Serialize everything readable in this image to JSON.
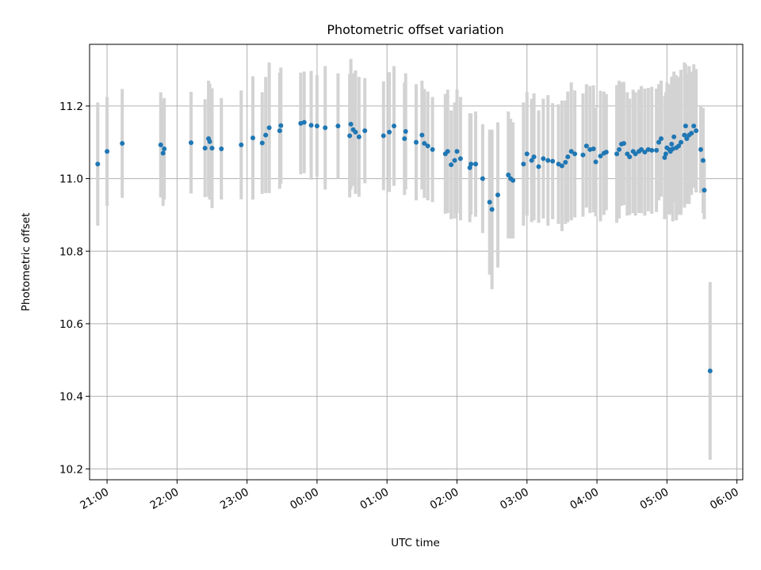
{
  "chart_data": {
    "type": "scatter",
    "title": "Photometric offset variation",
    "xlabel": "UTC time",
    "ylabel": "Photometric offset",
    "xlim": [
      "20:45",
      "06:05"
    ],
    "ylim": [
      10.17,
      11.37
    ],
    "xticks": [
      "21:00",
      "22:00",
      "23:00",
      "00:00",
      "01:00",
      "02:00",
      "03:00",
      "04:00",
      "05:00",
      "06:00"
    ],
    "yticks": [
      "10.2",
      "10.4",
      "10.6",
      "10.8",
      "11.0",
      "11.2"
    ],
    "grid": true,
    "colors": {
      "points": "#1f77b4",
      "error_bars": "#d3d3d3",
      "grid": "#b0b0b0"
    },
    "series": [
      {
        "points": [
          {
            "t": "20:52",
            "y": 11.04,
            "err": 0.17
          },
          {
            "t": "21:00",
            "y": 11.075,
            "err": 0.15
          },
          {
            "t": "21:13",
            "y": 11.097,
            "err": 0.15
          },
          {
            "t": "21:46",
            "y": 11.093,
            "err": 0.145
          },
          {
            "t": "21:48",
            "y": 11.07,
            "err": 0.145
          },
          {
            "t": "21:49",
            "y": 11.082,
            "err": 0.14
          },
          {
            "t": "22:12",
            "y": 11.099,
            "err": 0.14
          },
          {
            "t": "22:24",
            "y": 11.084,
            "err": 0.135
          },
          {
            "t": "22:27",
            "y": 11.11,
            "err": 0.16
          },
          {
            "t": "22:28",
            "y": 11.102,
            "err": 0.16
          },
          {
            "t": "22:30",
            "y": 11.084,
            "err": 0.165
          },
          {
            "t": "22:38",
            "y": 11.082,
            "err": 0.14
          },
          {
            "t": "22:55",
            "y": 11.093,
            "err": 0.15
          },
          {
            "t": "23:05",
            "y": 11.112,
            "err": 0.17
          },
          {
            "t": "23:13",
            "y": 11.098,
            "err": 0.14
          },
          {
            "t": "23:16",
            "y": 11.12,
            "err": 0.16
          },
          {
            "t": "23:19",
            "y": 11.14,
            "err": 0.18
          },
          {
            "t": "23:28",
            "y": 11.132,
            "err": 0.16
          },
          {
            "t": "23:29",
            "y": 11.146,
            "err": 0.16
          },
          {
            "t": "23:46",
            "y": 11.152,
            "err": 0.14
          },
          {
            "t": "23:49",
            "y": 11.155,
            "err": 0.14
          },
          {
            "t": "23:55",
            "y": 11.147,
            "err": 0.15
          },
          {
            "t": "00:00",
            "y": 11.145,
            "err": 0.14
          },
          {
            "t": "00:07",
            "y": 11.14,
            "err": 0.17
          },
          {
            "t": "00:18",
            "y": 11.145,
            "err": 0.145
          },
          {
            "t": "00:28",
            "y": 11.118,
            "err": 0.17
          },
          {
            "t": "00:29",
            "y": 11.15,
            "err": 0.18
          },
          {
            "t": "00:31",
            "y": 11.135,
            "err": 0.155
          },
          {
            "t": "00:33",
            "y": 11.128,
            "err": 0.17
          },
          {
            "t": "00:36",
            "y": 11.115,
            "err": 0.165
          },
          {
            "t": "00:41",
            "y": 11.132,
            "err": 0.145
          },
          {
            "t": "00:57",
            "y": 11.118,
            "err": 0.15
          },
          {
            "t": "01:02",
            "y": 11.128,
            "err": 0.165
          },
          {
            "t": "01:06",
            "y": 11.145,
            "err": 0.165
          },
          {
            "t": "01:15",
            "y": 11.11,
            "err": 0.155
          },
          {
            "t": "01:16",
            "y": 11.13,
            "err": 0.16
          },
          {
            "t": "01:25",
            "y": 11.1,
            "err": 0.16
          },
          {
            "t": "01:30",
            "y": 11.12,
            "err": 0.15
          },
          {
            "t": "01:32",
            "y": 11.097,
            "err": 0.15
          },
          {
            "t": "01:35",
            "y": 11.09,
            "err": 0.15
          },
          {
            "t": "01:39",
            "y": 11.08,
            "err": 0.145
          },
          {
            "t": "01:50",
            "y": 11.068,
            "err": 0.165
          },
          {
            "t": "01:52",
            "y": 11.075,
            "err": 0.17
          },
          {
            "t": "01:55",
            "y": 11.038,
            "err": 0.15
          },
          {
            "t": "01:58",
            "y": 11.05,
            "err": 0.16
          },
          {
            "t": "02:00",
            "y": 11.075,
            "err": 0.17
          },
          {
            "t": "02:03",
            "y": 11.055,
            "err": 0.17
          },
          {
            "t": "02:11",
            "y": 11.03,
            "err": 0.15
          },
          {
            "t": "02:12",
            "y": 11.04,
            "err": 0.14
          },
          {
            "t": "02:16",
            "y": 11.04,
            "err": 0.145
          },
          {
            "t": "02:22",
            "y": 11.0,
            "err": 0.15
          },
          {
            "t": "02:28",
            "y": 10.935,
            "err": 0.2
          },
          {
            "t": "02:30",
            "y": 10.915,
            "err": 0.22
          },
          {
            "t": "02:35",
            "y": 10.955,
            "err": 0.2
          },
          {
            "t": "02:44",
            "y": 11.01,
            "err": 0.175
          },
          {
            "t": "02:46",
            "y": 11.0,
            "err": 0.165
          },
          {
            "t": "02:48",
            "y": 10.995,
            "err": 0.16
          },
          {
            "t": "02:57",
            "y": 11.04,
            "err": 0.17
          },
          {
            "t": "03:00",
            "y": 11.068,
            "err": 0.17
          },
          {
            "t": "03:04",
            "y": 11.05,
            "err": 0.17
          },
          {
            "t": "03:06",
            "y": 11.06,
            "err": 0.175
          },
          {
            "t": "03:10",
            "y": 11.033,
            "err": 0.155
          },
          {
            "t": "03:14",
            "y": 11.055,
            "err": 0.165
          },
          {
            "t": "03:18",
            "y": 11.05,
            "err": 0.18
          },
          {
            "t": "03:22",
            "y": 11.048,
            "err": 0.16
          },
          {
            "t": "03:27",
            "y": 11.04,
            "err": 0.165
          },
          {
            "t": "03:30",
            "y": 11.035,
            "err": 0.18
          },
          {
            "t": "03:33",
            "y": 11.045,
            "err": 0.17
          },
          {
            "t": "03:35",
            "y": 11.06,
            "err": 0.18
          },
          {
            "t": "03:38",
            "y": 11.075,
            "err": 0.19
          },
          {
            "t": "03:41",
            "y": 11.068,
            "err": 0.175
          },
          {
            "t": "03:48",
            "y": 11.065,
            "err": 0.17
          },
          {
            "t": "03:51",
            "y": 11.09,
            "err": 0.17
          },
          {
            "t": "03:54",
            "y": 11.08,
            "err": 0.175
          },
          {
            "t": "03:57",
            "y": 11.082,
            "err": 0.175
          },
          {
            "t": "03:59",
            "y": 11.046,
            "err": 0.15
          },
          {
            "t": "04:03",
            "y": 11.062,
            "err": 0.18
          },
          {
            "t": "04:06",
            "y": 11.07,
            "err": 0.17
          },
          {
            "t": "04:08",
            "y": 11.073,
            "err": 0.16
          },
          {
            "t": "04:17",
            "y": 11.068,
            "err": 0.19
          },
          {
            "t": "04:19",
            "y": 11.08,
            "err": 0.19
          },
          {
            "t": "04:21",
            "y": 11.095,
            "err": 0.17
          },
          {
            "t": "04:23",
            "y": 11.097,
            "err": 0.17
          },
          {
            "t": "04:26",
            "y": 11.068,
            "err": 0.17
          },
          {
            "t": "04:28",
            "y": 11.06,
            "err": 0.16
          },
          {
            "t": "04:31",
            "y": 11.075,
            "err": 0.17
          },
          {
            "t": "04:33",
            "y": 11.068,
            "err": 0.17
          },
          {
            "t": "04:36",
            "y": 11.075,
            "err": 0.17
          },
          {
            "t": "04:38",
            "y": 11.08,
            "err": 0.175
          },
          {
            "t": "04:41",
            "y": 11.073,
            "err": 0.175
          },
          {
            "t": "04:44",
            "y": 11.08,
            "err": 0.17
          },
          {
            "t": "04:47",
            "y": 11.078,
            "err": 0.175
          },
          {
            "t": "04:51",
            "y": 11.078,
            "err": 0.17
          },
          {
            "t": "04:53",
            "y": 11.1,
            "err": 0.16
          },
          {
            "t": "04:55",
            "y": 11.11,
            "err": 0.16
          },
          {
            "t": "04:58",
            "y": 11.058,
            "err": 0.17
          },
          {
            "t": "04:59",
            "y": 11.068,
            "err": 0.17
          },
          {
            "t": "05:00",
            "y": 11.085,
            "err": 0.18
          },
          {
            "t": "05:02",
            "y": 11.08,
            "err": 0.18
          },
          {
            "t": "05:03",
            "y": 11.075,
            "err": 0.17
          },
          {
            "t": "05:04",
            "y": 11.095,
            "err": 0.185
          },
          {
            "t": "05:05",
            "y": 11.082,
            "err": 0.2
          },
          {
            "t": "05:06",
            "y": 11.115,
            "err": 0.18
          },
          {
            "t": "05:08",
            "y": 11.085,
            "err": 0.2
          },
          {
            "t": "05:10",
            "y": 11.09,
            "err": 0.19
          },
          {
            "t": "05:12",
            "y": 11.1,
            "err": 0.2
          },
          {
            "t": "05:15",
            "y": 11.12,
            "err": 0.2
          },
          {
            "t": "05:16",
            "y": 11.145,
            "err": 0.17
          },
          {
            "t": "05:17",
            "y": 11.11,
            "err": 0.18
          },
          {
            "t": "05:19",
            "y": 11.12,
            "err": 0.19
          },
          {
            "t": "05:21",
            "y": 11.125,
            "err": 0.17
          },
          {
            "t": "05:23",
            "y": 11.145,
            "err": 0.17
          },
          {
            "t": "05:25",
            "y": 11.132,
            "err": 0.17
          },
          {
            "t": "05:29",
            "y": 11.08,
            "err": 0.12
          },
          {
            "t": "05:31",
            "y": 11.05,
            "err": 0.145
          },
          {
            "t": "05:32",
            "y": 10.968,
            "err": 0.08
          },
          {
            "t": "05:37",
            "y": 10.47,
            "err": 0.245
          }
        ]
      }
    ]
  }
}
